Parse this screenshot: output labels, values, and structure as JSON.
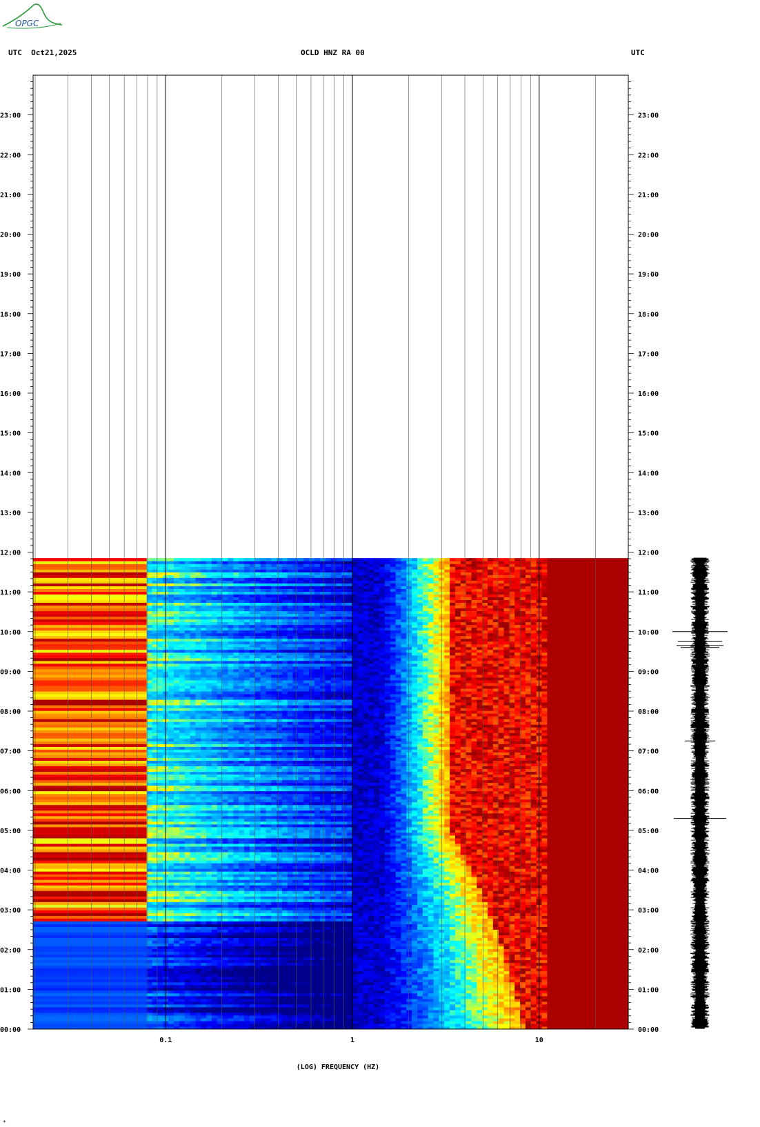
{
  "header": {
    "left": "UTC  Oct21,2025",
    "center": "OCLD HNZ RA 00",
    "right": "UTC"
  },
  "logo_text": "OPGC",
  "chart_data": {
    "type": "heatmap",
    "title": "OCLD HNZ RA 00",
    "xlabel": "(LOG) FREQUENCY (HZ)",
    "x_scale": "log",
    "xlim": [
      0.0195,
      30
    ],
    "x_tick_labels": [
      "0.1",
      "1",
      "10"
    ],
    "x_tick_values": [
      0.1,
      1,
      10
    ],
    "ylabel": "UTC",
    "ylim_hours": [
      0,
      24
    ],
    "y_tick_labels": [
      "00:00",
      "01:00",
      "02:00",
      "03:00",
      "04:00",
      "05:00",
      "06:00",
      "07:00",
      "08:00",
      "09:00",
      "10:00",
      "11:00",
      "12:00",
      "13:00",
      "14:00",
      "15:00",
      "16:00",
      "17:00",
      "18:00",
      "19:00",
      "20:00",
      "21:00",
      "22:00",
      "23:00"
    ],
    "data_end_hour": 11.85,
    "colormap": [
      "#00008b",
      "#0000ff",
      "#0080ff",
      "#00ffff",
      "#ffff00",
      "#ff8000",
      "#ff0000",
      "#8b0000"
    ],
    "waveform_panel": "seismic trace (right)",
    "footer_mark": "*"
  }
}
